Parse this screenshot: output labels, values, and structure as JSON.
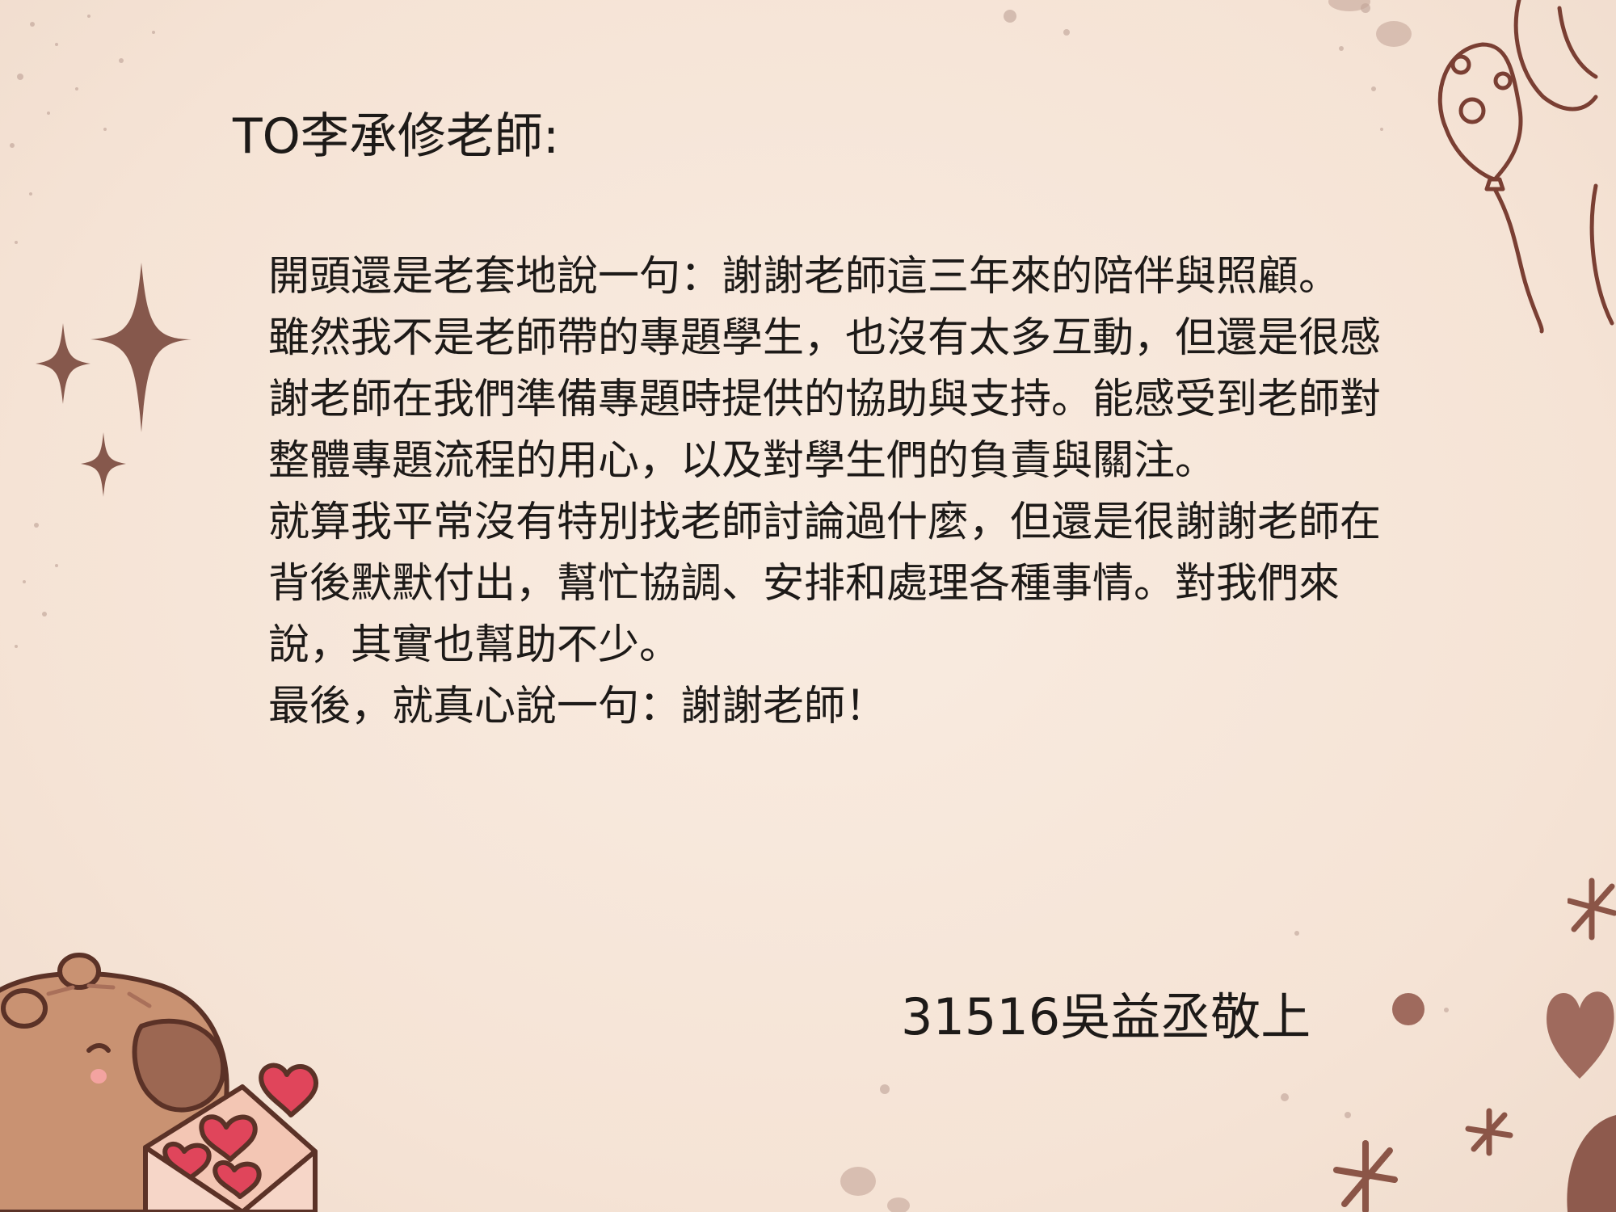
{
  "letter": {
    "greeting": "TO李承修老師:",
    "paragraphs": [
      "開頭還是老套地說一句：謝謝老師這三年來的陪伴與照顧。",
      "雖然我不是老師帶的專題學生，也沒有太多互動，但還是很感謝老師在我們準備專題時提供的協助與支持。能感受到老師對整體專題流程的用心，以及對學生們的負責與關注。",
      "就算我平常沒有特別找老師討論過什麼，但還是很謝謝老師在背後默默付出，幫忙協調、安排和處理各種事情。對我們來說，其實也幫助不少。",
      "最後，就真心說一句：謝謝老師！"
    ],
    "signature": "31516吳益丞敬上"
  },
  "decorations": {
    "icons": [
      "sparkle-icon",
      "balloon-icon",
      "capybara-illustration",
      "heart-envelope-icon",
      "heart-icon",
      "star-doodle-icon",
      "dot-icon"
    ],
    "colors": {
      "paper": "#f6e6d9",
      "ink": "#1d1a18",
      "brown_line": "#7a3f33",
      "sparkle": "#86584c",
      "capybara": "#c99272",
      "heart_red": "#e0455b"
    }
  }
}
